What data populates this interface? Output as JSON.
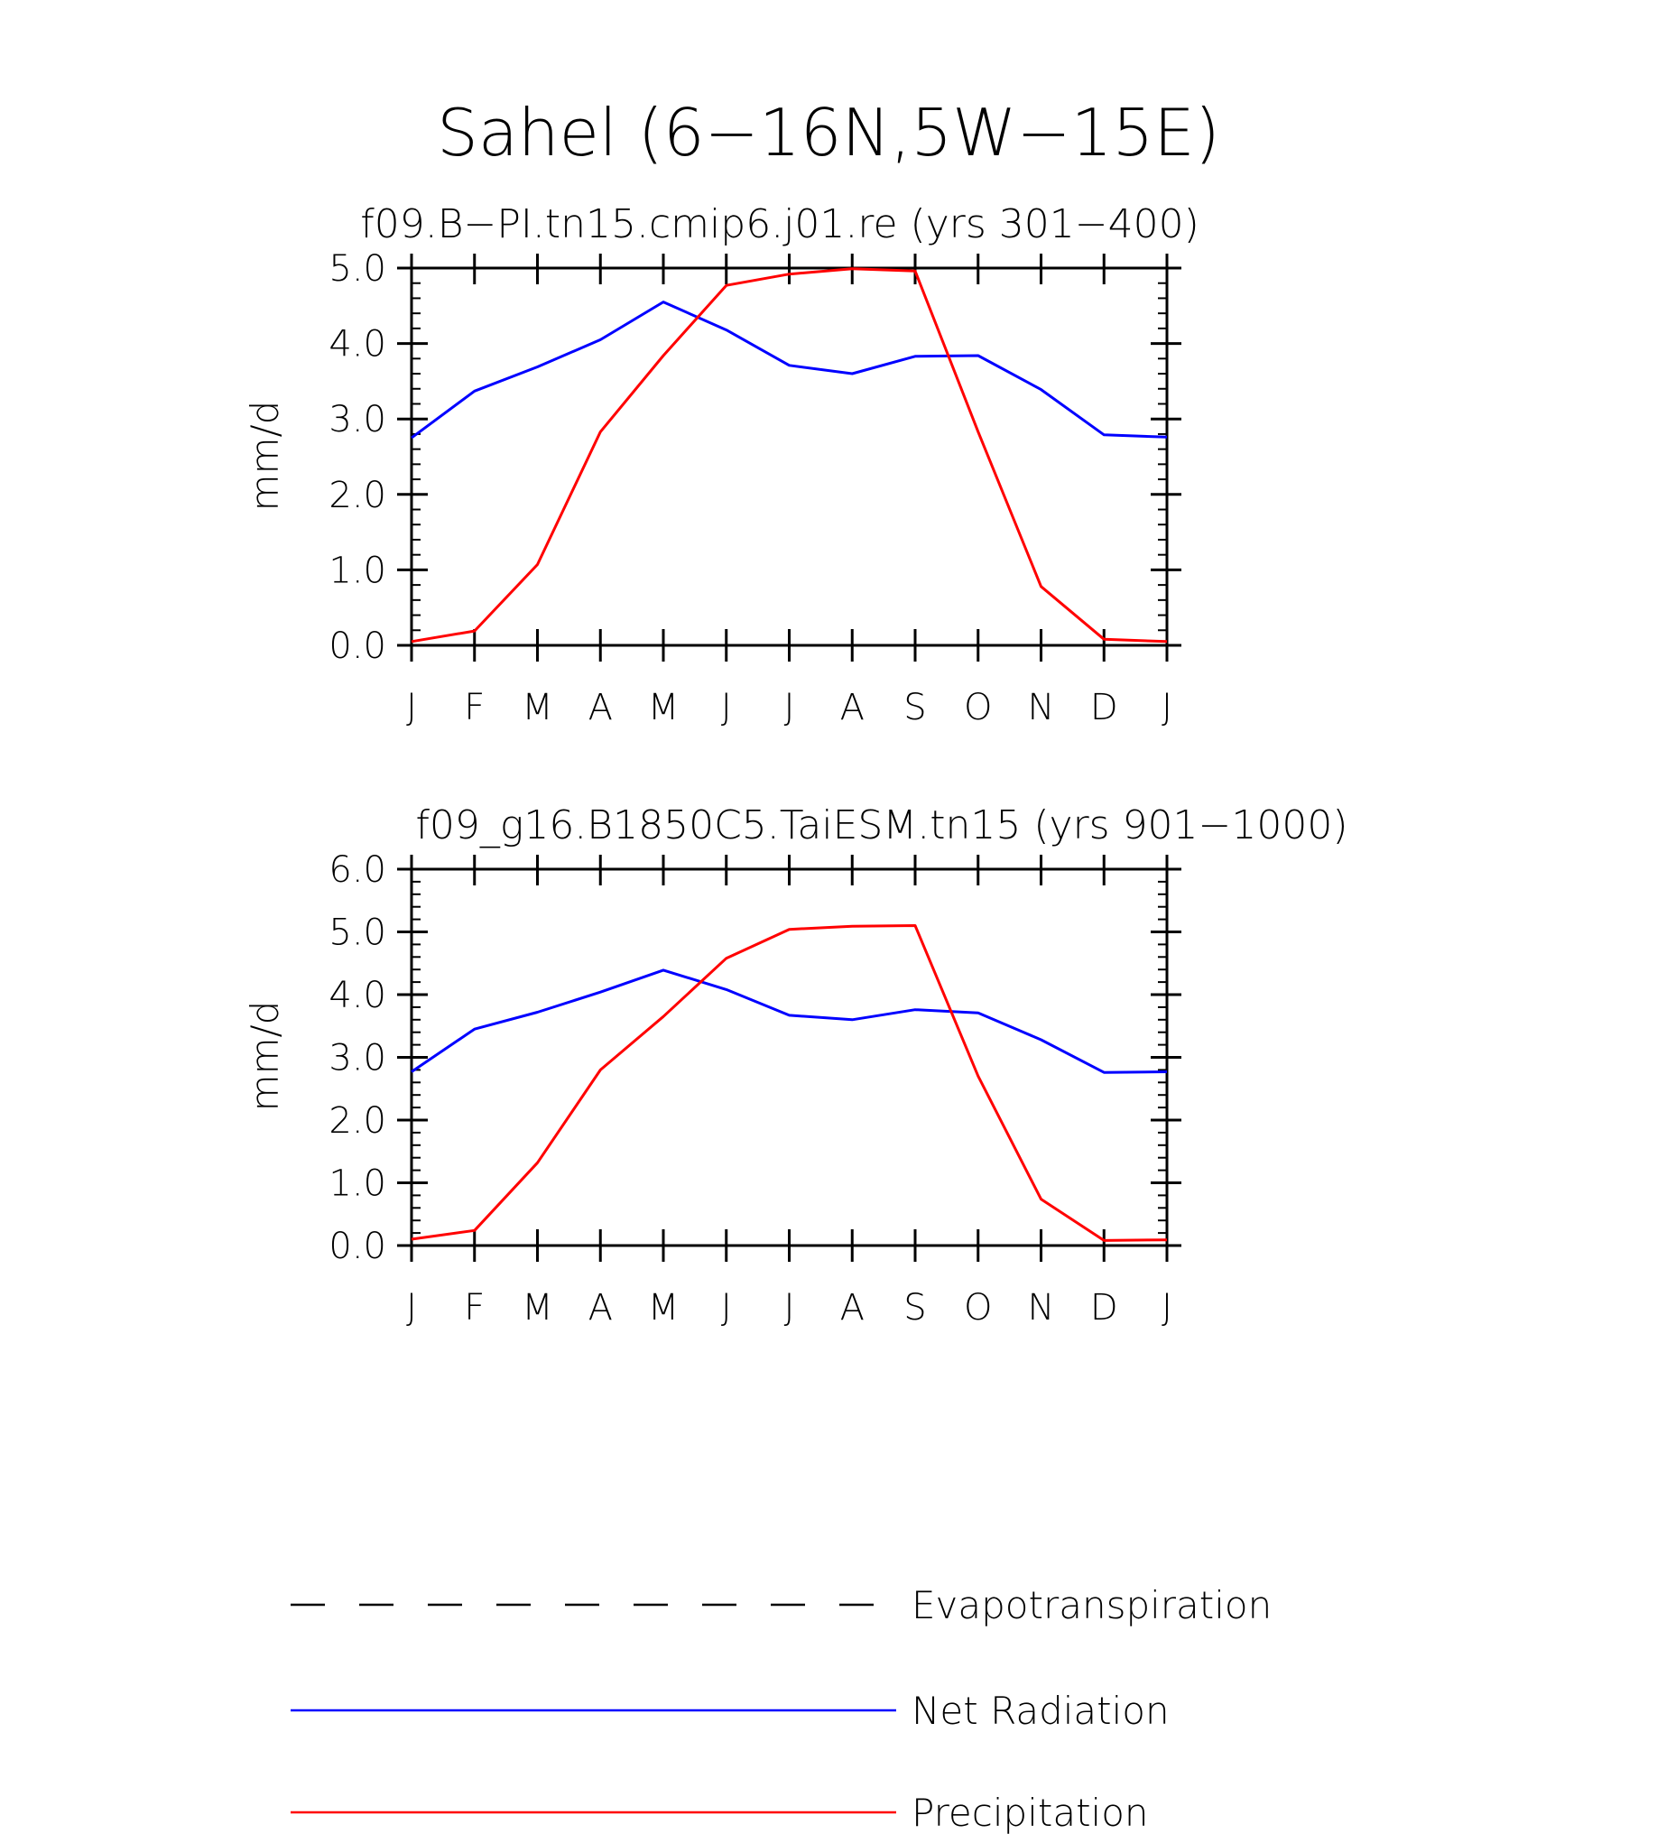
{
  "figure": {
    "title": "Sahel (6−16N,5W−15E)"
  },
  "chart_data": [
    {
      "type": "line",
      "title": "f09.B−PI.tn15.cmip6.j01.re (yrs 301−400)",
      "xlabel": "",
      "ylabel": "mm/d",
      "categories": [
        "J",
        "F",
        "M",
        "A",
        "M",
        "J",
        "J",
        "A",
        "S",
        "O",
        "N",
        "D",
        "J"
      ],
      "ylim": [
        0,
        5
      ],
      "yticks": [
        "0.0",
        "1.0",
        "2.0",
        "3.0",
        "4.0",
        "5.0"
      ],
      "ytick_values": [
        0,
        1,
        2,
        3,
        4,
        5
      ],
      "series": [
        {
          "name": "Net Radiation",
          "color": "#0000ff",
          "values": [
            2.75,
            3.37,
            3.69,
            4.05,
            4.55,
            4.18,
            3.71,
            3.6,
            3.83,
            3.84,
            3.39,
            2.79,
            2.76
          ]
        },
        {
          "name": "Precipitation",
          "color": "#ff0000",
          "values": [
            0.05,
            0.19,
            1.07,
            2.83,
            3.84,
            4.77,
            4.92,
            4.99,
            4.96,
            2.83,
            0.78,
            0.08,
            0.05
          ]
        }
      ]
    },
    {
      "type": "line",
      "title": "f09_g16.B1850C5.TaiESM.tn15 (yrs 901−1000)",
      "xlabel": "",
      "ylabel": "mm/d",
      "categories": [
        "J",
        "F",
        "M",
        "A",
        "M",
        "J",
        "J",
        "A",
        "S",
        "O",
        "N",
        "D",
        "J"
      ],
      "ylim": [
        0,
        6
      ],
      "yticks": [
        "0.0",
        "1.0",
        "2.0",
        "3.0",
        "4.0",
        "5.0",
        "6.0"
      ],
      "ytick_values": [
        0,
        1,
        2,
        3,
        4,
        5,
        6
      ],
      "series": [
        {
          "name": "Net Radiation",
          "color": "#0000ff",
          "values": [
            2.77,
            3.45,
            3.72,
            4.04,
            4.39,
            4.08,
            3.67,
            3.6,
            3.76,
            3.71,
            3.28,
            2.76,
            2.77
          ]
        },
        {
          "name": "Precipitation",
          "color": "#ff0000",
          "values": [
            0.1,
            0.24,
            1.32,
            2.8,
            3.65,
            4.58,
            5.04,
            5.09,
            5.1,
            2.7,
            0.74,
            0.08,
            0.09
          ]
        }
      ]
    }
  ],
  "legend": [
    {
      "label": "Evapotranspiration",
      "color": "#000000",
      "style": "dashed"
    },
    {
      "label": "Net Radiation",
      "color": "#0000ff",
      "style": "solid"
    },
    {
      "label": "Precipitation",
      "color": "#ff0000",
      "style": "solid"
    }
  ]
}
